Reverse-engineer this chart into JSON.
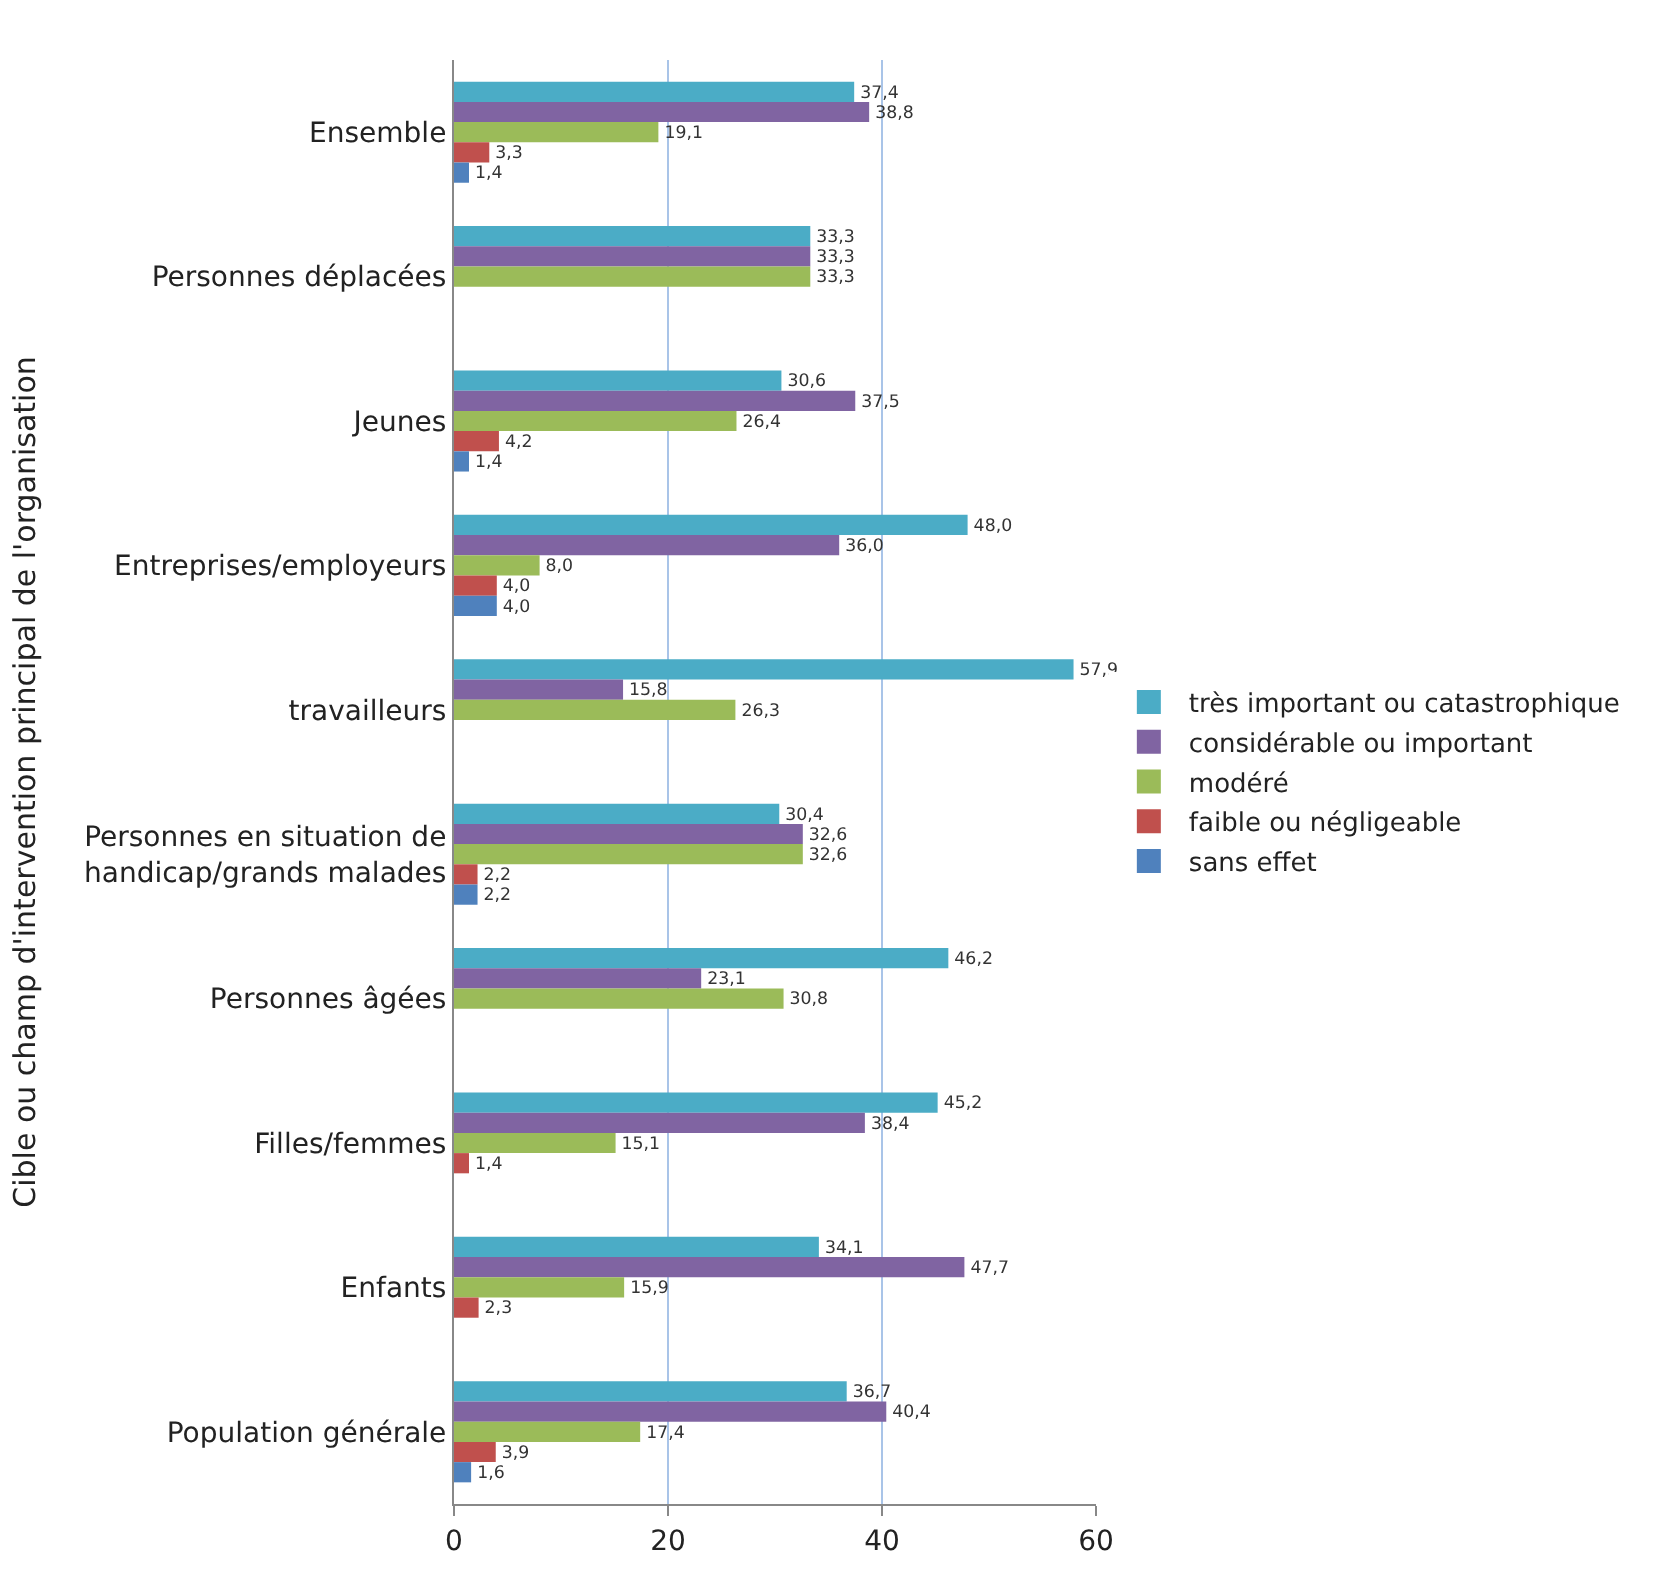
{
  "chart_data": {
    "type": "bar",
    "orientation": "horizontal",
    "ylabel": "Cible ou champ d'intervention principal de l'organisation",
    "categories": [
      "Ensemble",
      "Personnes déplacées",
      "Jeunes",
      "Entreprises/employeurs",
      "travailleurs",
      "Personnes en situation de handicap/grands malades",
      "Personnes âgées",
      "Filles/femmes",
      "Enfants",
      "Population générale"
    ],
    "series": [
      {
        "name": "très important ou catastrophique",
        "color": "#4bacc6",
        "values": [
          37.4,
          33.3,
          30.6,
          48.0,
          57.9,
          30.4,
          46.2,
          45.2,
          34.1,
          36.7
        ],
        "value_labels": [
          "37,4",
          "33,3",
          "30,6",
          "48,0",
          "57,9",
          "30,4",
          "46,2",
          "45,2",
          "34,1",
          "36,7"
        ]
      },
      {
        "name": "considérable ou important",
        "color": "#8064a2",
        "values": [
          38.8,
          33.3,
          37.5,
          36.0,
          15.8,
          32.6,
          23.1,
          38.4,
          47.7,
          40.4
        ],
        "value_labels": [
          "38,8",
          "33,3",
          "37,5",
          "36,0",
          "15,8",
          "32,6",
          "23,1",
          "38,4",
          "47,7",
          "40,4"
        ]
      },
      {
        "name": "modéré",
        "color": "#9bbb59",
        "values": [
          19.1,
          33.3,
          26.4,
          8.0,
          26.3,
          32.6,
          30.8,
          15.1,
          15.9,
          17.4
        ],
        "value_labels": [
          "19,1",
          "33,3",
          "26,4",
          "8,0",
          "26,3",
          "32,6",
          "30,8",
          "15,1",
          "15,9",
          "17,4"
        ]
      },
      {
        "name": "faible ou négligeable",
        "color": "#c0504d",
        "values": [
          3.3,
          null,
          4.2,
          4.0,
          null,
          2.2,
          null,
          1.4,
          2.3,
          3.9
        ],
        "value_labels": [
          "3,3",
          null,
          "4,2",
          "4,0",
          null,
          "2,2",
          null,
          "1,4",
          "2,3",
          "3,9"
        ]
      },
      {
        "name": "sans effet",
        "color": "#4f81bd",
        "values": [
          1.4,
          null,
          1.4,
          4.0,
          null,
          2.2,
          null,
          null,
          null,
          1.6
        ],
        "value_labels": [
          "1,4",
          null,
          "1,4",
          "4,0",
          null,
          "2,2",
          null,
          null,
          null,
          "1,6"
        ]
      }
    ],
    "xlim": [
      0,
      60
    ],
    "xticks": [
      0,
      20,
      40,
      60
    ],
    "grid": "x",
    "legend": "right"
  }
}
